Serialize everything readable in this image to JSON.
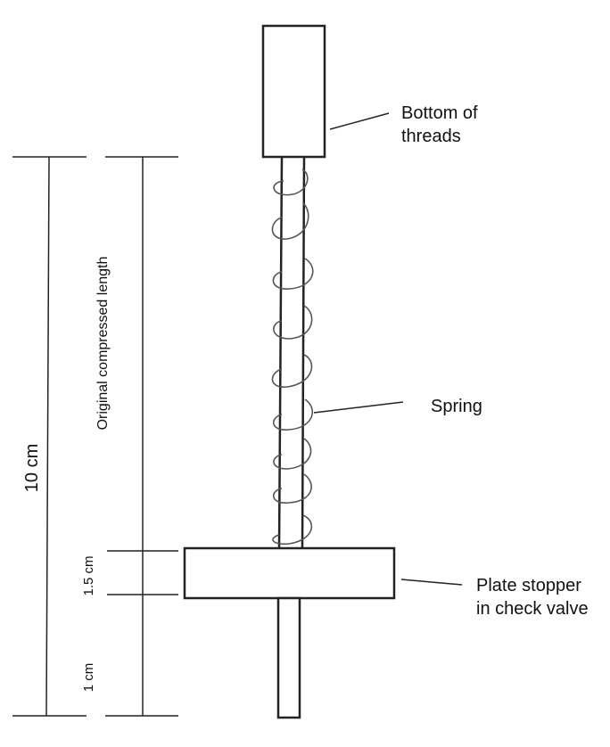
{
  "labels": {
    "bottom_of_threads": [
      "Bottom of",
      "threads"
    ],
    "spring": "Spring",
    "plate_stopper": [
      "Plate stopper",
      "in check valve"
    ],
    "total_length": "10 cm",
    "compressed_length": "Original compressed length",
    "plate_thickness": "1.5 cm",
    "rod_extension": "1 cm"
  },
  "colors": {
    "stroke": "#222222",
    "background": "#ffffff"
  }
}
